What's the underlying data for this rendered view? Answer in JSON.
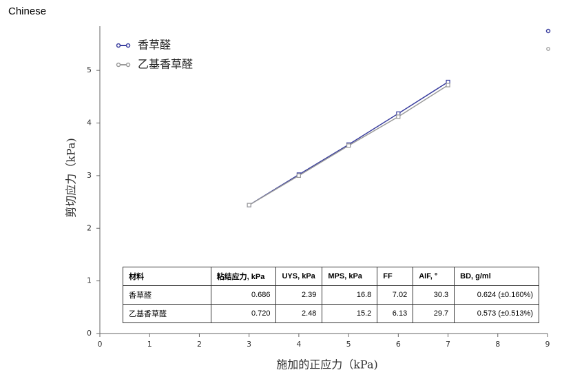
{
  "page_label": "Chinese",
  "chart_data": {
    "type": "line",
    "x_label": "施加的正应力（kPa)",
    "y_label": "剪切应力（kPa)",
    "x": [
      3,
      4,
      5,
      6,
      7
    ],
    "series": [
      {
        "name": "香草醛",
        "color": "#3b3f9f",
        "values": [
          2.44,
          3.02,
          3.59,
          4.18,
          4.78
        ]
      },
      {
        "name": "乙基香草醛",
        "color": "#9a9a9a",
        "values": [
          2.44,
          3.0,
          3.57,
          4.12,
          4.72
        ]
      }
    ],
    "xlim": [
      0,
      9
    ],
    "xticks": [
      0,
      1,
      2,
      3,
      4,
      5,
      6,
      7,
      8,
      9
    ],
    "ylim": [
      0,
      5.84
    ],
    "yticks": [
      0,
      1,
      2,
      3,
      4,
      5
    ],
    "legend": "upper-left"
  },
  "table": {
    "header": [
      "材料",
      "粘结应力, kPa",
      "UYS, kPa",
      "MPS, kPa",
      "FF",
      "AIF, °",
      "BD, g/ml"
    ],
    "rows": [
      [
        "香草醛",
        "0.686",
        "2.39",
        "16.8",
        "7.02",
        "30.3",
        "0.624 (±0.160%)"
      ],
      [
        "乙基香草醛",
        "0.720",
        "2.48",
        "15.2",
        "6.13",
        "29.7",
        "0.573 (±0.513%)"
      ]
    ]
  }
}
